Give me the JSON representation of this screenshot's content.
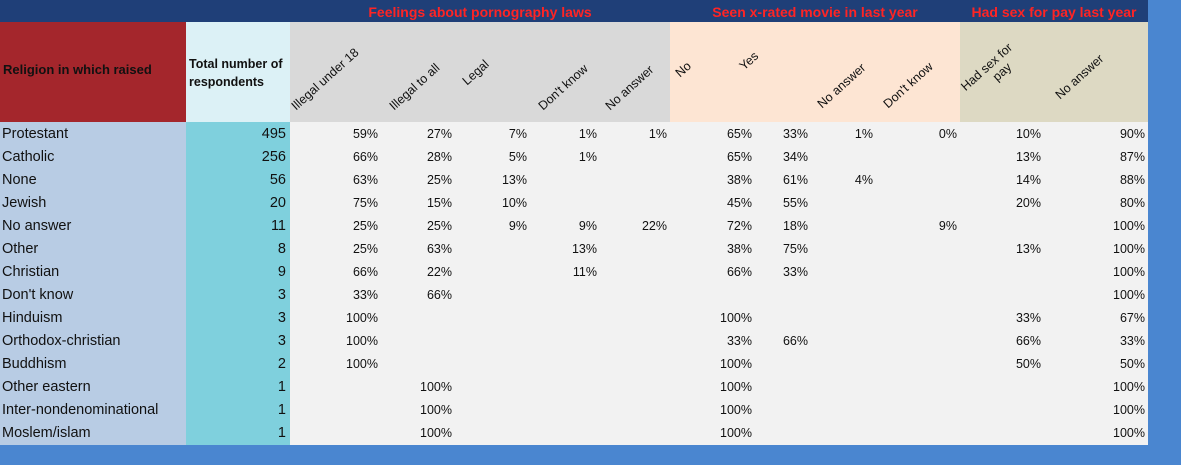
{
  "groups": {
    "feelings": "Feelings about pornography laws",
    "seen": "Seen x-rated movie in last year",
    "sex": "Had sex for pay last year"
  },
  "headers": {
    "religion": "Religion in which raised",
    "total": "Total number of respondents",
    "columns": [
      "Illegal under 18",
      "Illegal to all",
      "Legal",
      "Don't know",
      "No answer",
      "No",
      "Yes",
      "No answer",
      "Don't know",
      "Had sex for pay",
      "No answer"
    ]
  },
  "rows": [
    {
      "religion": "Protestant",
      "total": "495",
      "cells": [
        "59%",
        "27%",
        "7%",
        "1%",
        "1%",
        "65%",
        "33%",
        "1%",
        "0%",
        "10%",
        "90%"
      ]
    },
    {
      "religion": "Catholic",
      "total": "256",
      "cells": [
        "66%",
        "28%",
        "5%",
        "1%",
        "",
        "65%",
        "34%",
        "",
        "",
        "13%",
        "87%"
      ]
    },
    {
      "religion": "None",
      "total": "56",
      "cells": [
        "63%",
        "25%",
        "13%",
        "",
        "",
        "38%",
        "61%",
        "4%",
        "",
        "14%",
        "88%"
      ]
    },
    {
      "religion": "Jewish",
      "total": "20",
      "cells": [
        "75%",
        "15%",
        "10%",
        "",
        "",
        "45%",
        "55%",
        "",
        "",
        "20%",
        "80%"
      ]
    },
    {
      "religion": "No answer",
      "total": "11",
      "cells": [
        "25%",
        "25%",
        "9%",
        "9%",
        "22%",
        "72%",
        "18%",
        "",
        "9%",
        "",
        "100%"
      ]
    },
    {
      "religion": "Other",
      "total": "8",
      "cells": [
        "25%",
        "63%",
        "",
        "13%",
        "",
        "38%",
        "75%",
        "",
        "",
        "13%",
        "100%"
      ]
    },
    {
      "religion": "Christian",
      "total": "9",
      "cells": [
        "66%",
        "22%",
        "",
        "11%",
        "",
        "66%",
        "33%",
        "",
        "",
        "",
        "100%"
      ]
    },
    {
      "religion": "Don't know",
      "total": "3",
      "cells": [
        "33%",
        "66%",
        "",
        "",
        "",
        "",
        "",
        "",
        "",
        "",
        "100%"
      ]
    },
    {
      "religion": "Hinduism",
      "total": "3",
      "cells": [
        "100%",
        "",
        "",
        "",
        "",
        "100%",
        "",
        "",
        "",
        "33%",
        "67%"
      ]
    },
    {
      "religion": "Orthodox-christian",
      "total": "3",
      "cells": [
        "100%",
        "",
        "",
        "",
        "",
        "33%",
        "66%",
        "",
        "",
        "66%",
        "33%"
      ]
    },
    {
      "religion": "Buddhism",
      "total": "2",
      "cells": [
        "100%",
        "",
        "",
        "",
        "",
        "100%",
        "",
        "",
        "",
        "50%",
        "50%"
      ]
    },
    {
      "religion": "Other eastern",
      "total": "1",
      "cells": [
        "",
        "100%",
        "",
        "",
        "",
        "100%",
        "",
        "",
        "",
        "",
        "100%"
      ]
    },
    {
      "religion": "Inter-nondenominational",
      "total": "1",
      "cells": [
        "",
        "100%",
        "",
        "",
        "",
        "100%",
        "",
        "",
        "",
        "",
        "100%"
      ]
    },
    {
      "religion": "Moslem/islam",
      "total": "1",
      "cells": [
        "",
        "100%",
        "",
        "",
        "",
        "100%",
        "",
        "",
        "",
        "",
        "100%"
      ]
    }
  ],
  "colors": {
    "topbar": "#1f3f78",
    "group_title": "#ff2424",
    "religion_header": "#a4262c",
    "total_header": "#dcf1f6",
    "feelings_header": "#d9d9d9",
    "seen_header": "#fde5d3",
    "sex_header": "#ddd9c3",
    "religion_body": "#b8cce4",
    "total_body": "#7fd0dd",
    "body": "#f2f2f2",
    "outer": "#4a86d0"
  }
}
